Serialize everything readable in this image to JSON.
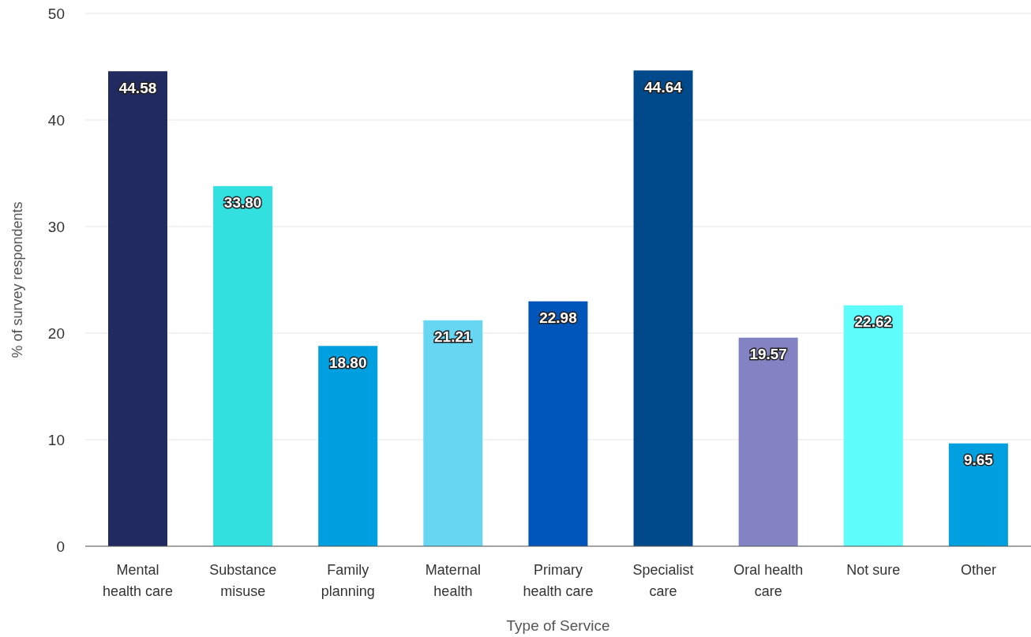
{
  "chart_data": {
    "type": "bar",
    "xlabel": "Type of Service",
    "ylabel": "% of survey respondents",
    "categories": [
      "Mental health care",
      "Substance misuse",
      "Family planning",
      "Maternal health",
      "Primary health care",
      "Specialist care",
      "Oral health care",
      "Not sure",
      "Other"
    ],
    "values": [
      44.58,
      33.8,
      18.8,
      21.21,
      22.98,
      44.64,
      19.57,
      22.62,
      9.65
    ],
    "value_labels": [
      "44.58",
      "33.80",
      "18.80",
      "21.21",
      "22.98",
      "44.64",
      "19.57",
      "22.62",
      "9.65"
    ],
    "colors": [
      "#222b5f",
      "#33e0e0",
      "#00a0e0",
      "#66d6f2",
      "#0055b8",
      "#004a8c",
      "#8383c4",
      "#5ffcfc",
      "#00a0e0"
    ],
    "ylim": [
      0,
      50
    ],
    "yticks": [
      0,
      10,
      20,
      30,
      40,
      50
    ],
    "grid": "y",
    "legend": false
  }
}
